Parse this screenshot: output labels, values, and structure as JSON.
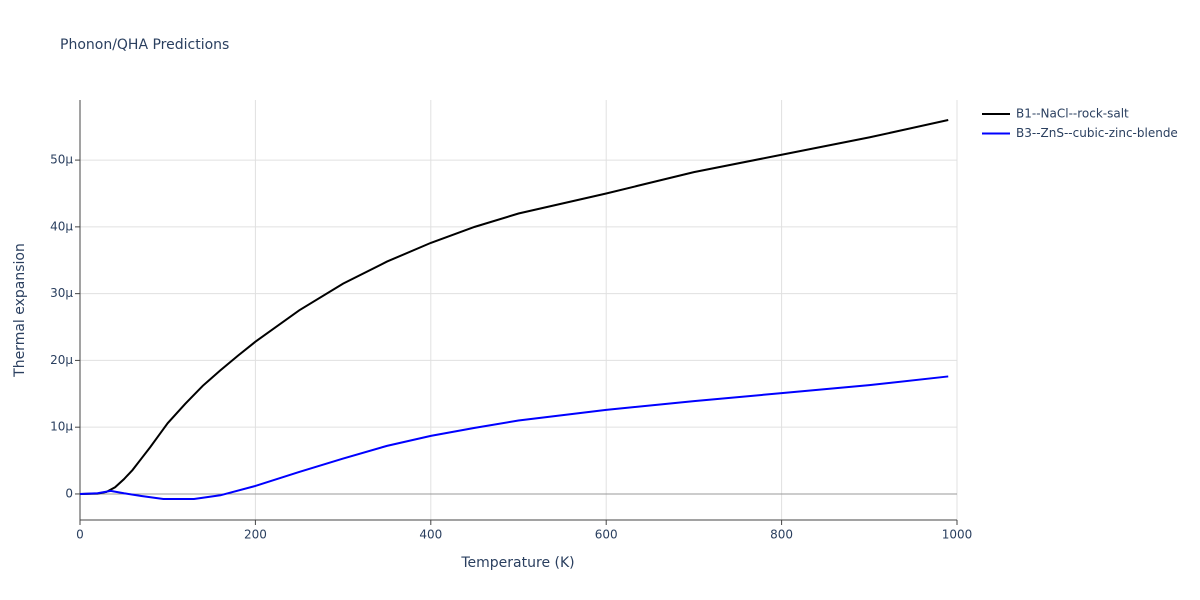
{
  "chart_data": {
    "type": "line",
    "title": "Phonon/QHA Predictions",
    "x_label": "Temperature (K)",
    "y_label": "Thermal expansion",
    "xlim": [
      0,
      1000
    ],
    "xticks": [
      0,
      200,
      400,
      600,
      800,
      1000
    ],
    "ylim": [
      -3.9e-06,
      5.9e-05
    ],
    "yticks": [
      0,
      {
        "value": 1e-05,
        "label": "10μ"
      },
      {
        "value": 2e-05,
        "label": "20μ"
      },
      {
        "value": 3e-05,
        "label": "30μ"
      },
      {
        "value": 4e-05,
        "label": "40μ"
      },
      {
        "value": 5e-05,
        "label": "50μ"
      }
    ],
    "grid": true,
    "series": [
      {
        "name": "B1--NaCl--rock-salt",
        "color": "#000000",
        "x": [
          0,
          20,
          30,
          40,
          50,
          60,
          70,
          80,
          90,
          100,
          120,
          140,
          160,
          180,
          200,
          250,
          300,
          350,
          400,
          450,
          500,
          600,
          700,
          800,
          900,
          990
        ],
        "values": [
          0,
          5e-08,
          3e-07,
          1e-06,
          2.2e-06,
          3.6e-06,
          5.3e-06,
          7e-06,
          8.8e-06,
          1.06e-05,
          1.35e-05,
          1.62e-05,
          1.85e-05,
          2.07e-05,
          2.28e-05,
          2.75e-05,
          3.15e-05,
          3.48e-05,
          3.76e-05,
          4e-05,
          4.2e-05,
          4.5e-05,
          4.82e-05,
          5.08e-05,
          5.34e-05,
          5.6e-05
        ]
      },
      {
        "name": "B3--ZnS--cubic-zinc-blende",
        "color": "#0000ff",
        "x": [
          0,
          20,
          35,
          50,
          70,
          95,
          130,
          160,
          200,
          250,
          300,
          350,
          400,
          450,
          500,
          600,
          700,
          800,
          900,
          990
        ],
        "values": [
          0,
          1e-07,
          4.5e-07,
          1e-07,
          -3e-07,
          -7.5e-07,
          -7.5e-07,
          -2e-07,
          1.2e-06,
          3.3e-06,
          5.3e-06,
          7.2e-06,
          8.7e-06,
          9.9e-06,
          1.1e-05,
          1.26e-05,
          1.39e-05,
          1.51e-05,
          1.63e-05,
          1.76e-05
        ]
      }
    ]
  }
}
